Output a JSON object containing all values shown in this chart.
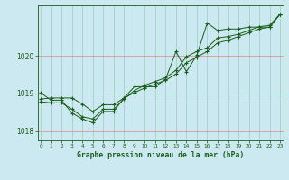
{
  "title": "Graphe pression niveau de la mer (hPa)",
  "background_color": "#cce8f0",
  "plot_bg_color": "#cce8f0",
  "grid_color": "#99ccbb",
  "line_color": "#1a5c1a",
  "xlim": [
    -0.3,
    23.3
  ],
  "ylim": [
    1017.75,
    1021.35
  ],
  "yticks": [
    1018,
    1019,
    1020
  ],
  "xticks": [
    0,
    1,
    2,
    3,
    4,
    5,
    6,
    7,
    8,
    9,
    10,
    11,
    12,
    13,
    14,
    15,
    16,
    17,
    18,
    19,
    20,
    21,
    22,
    23
  ],
  "series": [
    [
      1018.85,
      1018.88,
      1018.88,
      1018.88,
      1018.72,
      1018.52,
      1018.7,
      1018.7,
      1018.88,
      1019.02,
      1019.15,
      1019.25,
      1019.35,
      1019.52,
      1019.82,
      1019.97,
      1020.12,
      1020.35,
      1020.42,
      1020.52,
      1020.62,
      1020.72,
      1020.77,
      1021.12
    ],
    [
      1019.02,
      1018.82,
      1018.82,
      1018.48,
      1018.32,
      1018.22,
      1018.52,
      1018.52,
      1018.88,
      1019.18,
      1019.18,
      1019.18,
      1019.38,
      1020.12,
      1019.58,
      1020.02,
      1020.88,
      1020.68,
      1020.72,
      1020.72,
      1020.77,
      1020.77,
      1020.77,
      1021.12
    ],
    [
      1018.78,
      1018.75,
      1018.75,
      1018.58,
      1018.38,
      1018.32,
      1018.58,
      1018.58,
      1018.85,
      1019.08,
      1019.22,
      1019.32,
      1019.42,
      1019.62,
      1019.98,
      1020.12,
      1020.22,
      1020.48,
      1020.52,
      1020.58,
      1020.68,
      1020.78,
      1020.82,
      1021.12
    ]
  ]
}
